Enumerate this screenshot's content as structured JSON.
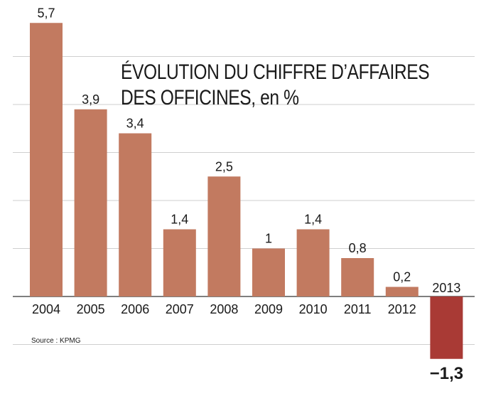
{
  "title": {
    "line1": "ÉVOLUTION DU CHIFFRE D’AFFAIRES",
    "line2": "DES OFFICINES, en %"
  },
  "source": "Source : KPMG",
  "colors": {
    "positive_bar": "#c27a60",
    "negative_bar": "#a93a35",
    "gridline": "#cfcfcf",
    "axis": "#555555"
  },
  "chart_data": {
    "type": "bar",
    "categories": [
      "2004",
      "2005",
      "2006",
      "2007",
      "2008",
      "2009",
      "2010",
      "2011",
      "2012",
      "2013"
    ],
    "values": [
      5.7,
      3.9,
      3.4,
      1.4,
      2.5,
      1,
      1.4,
      0.8,
      0.2,
      -1.3
    ],
    "value_labels": [
      "5,7",
      "3,9",
      "3,4",
      "1,4",
      "2,5",
      "1",
      "1,4",
      "0,8",
      "0,2",
      "−1,3"
    ],
    "title": "ÉVOLUTION DU CHIFFRE D’AFFAIRES DES OFFICINES, en %",
    "ylim": [
      -1.3,
      5.7
    ],
    "gridlines": [
      -1,
      0,
      1,
      2,
      3,
      4,
      5
    ],
    "grid": true
  }
}
